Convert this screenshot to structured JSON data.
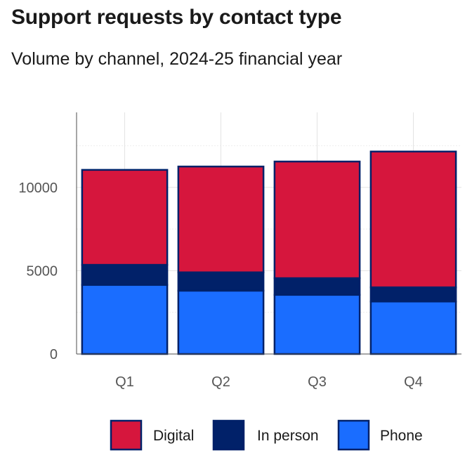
{
  "chart_data": {
    "type": "bar",
    "stacked": true,
    "title": "Support requests by contact type",
    "subtitle": "Volume by channel, 2024-25 financial year",
    "xlabel": "",
    "ylabel": "",
    "categories": [
      "Q1",
      "Q2",
      "Q3",
      "Q4"
    ],
    "series": [
      {
        "name": "Phone",
        "values": [
          4150,
          3800,
          3550,
          3150
        ],
        "color": "#1a6dff"
      },
      {
        "name": "In person",
        "values": [
          1200,
          1100,
          1000,
          850
        ],
        "color": "#012169"
      },
      {
        "name": "Digital",
        "values": [
          5700,
          6350,
          7000,
          8150
        ],
        "color": "#d6163d"
      }
    ],
    "stack_order": [
      "Phone",
      "In person",
      "Digital"
    ],
    "legend_order": [
      "Digital",
      "In person",
      "Phone"
    ],
    "legend_position": "bottom",
    "bar_outline_color": "#012169",
    "ylim": [
      0,
      14500
    ],
    "yticks": [
      0,
      5000,
      10000
    ],
    "ytick_labels": [
      "0",
      "5000",
      "10000"
    ],
    "grid": true
  }
}
